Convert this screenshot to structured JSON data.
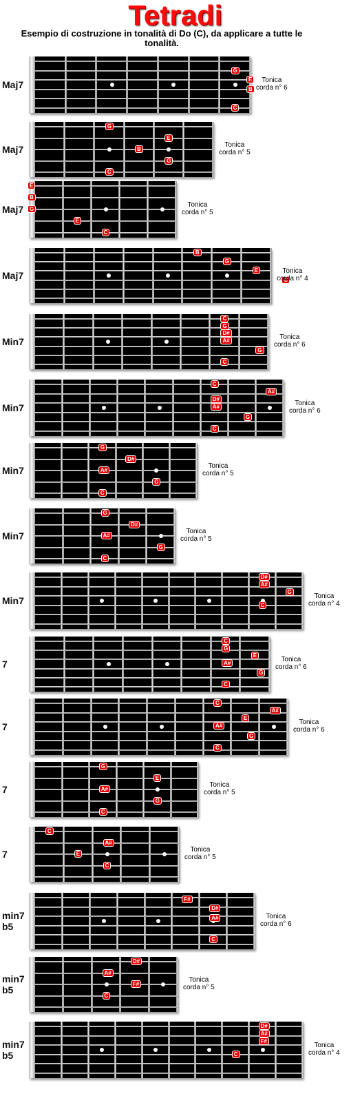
{
  "title": "Tetradi",
  "subtitle": "Esempio di costruzione in tonalità di Do (C), da applicare a tutte le tonalità.",
  "diagrams": [
    {
      "chord": "Maj7",
      "root": [
        "Tonica",
        "corda n° 6"
      ],
      "frets": 7,
      "strings": 6,
      "notes": [
        {
          "n": "G",
          "s": 2,
          "f": 7
        },
        {
          "n": "E",
          "s": 3,
          "f": 7.5
        },
        {
          "n": "B",
          "s": 4,
          "f": 7.5
        },
        {
          "n": "C",
          "s": 6,
          "f": 7
        }
      ]
    },
    {
      "chord": "Maj7",
      "root": [
        "Tonica",
        "corda n° 5"
      ],
      "frets": 6,
      "strings": 5,
      "notes": [
        {
          "n": "G",
          "s": 1,
          "f": 3
        },
        {
          "n": "E",
          "s": 2,
          "f": 5
        },
        {
          "n": "B",
          "s": 3,
          "f": 4
        },
        {
          "n": "G",
          "s": 4,
          "f": 5
        },
        {
          "n": "C",
          "s": 5,
          "f": 3
        }
      ]
    },
    {
      "chord": "Maj7",
      "root": [
        "Tonica",
        "corda n° 5"
      ],
      "frets": 5,
      "strings": 5,
      "notes": [
        {
          "n": "E",
          "s": 1,
          "f": 0
        },
        {
          "n": "B",
          "s": 2,
          "f": 0
        },
        {
          "n": "G",
          "s": 3,
          "f": 0
        },
        {
          "n": "E",
          "s": 4,
          "f": 2
        },
        {
          "n": "C",
          "s": 5,
          "f": 3
        }
      ]
    },
    {
      "chord": "Maj7",
      "root": [
        "Tonica",
        "corda n° 4"
      ],
      "frets": 8,
      "strings": 6,
      "notes": [
        {
          "n": "B",
          "s": 1,
          "f": 6
        },
        {
          "n": "G",
          "s": 2,
          "f": 7
        },
        {
          "n": "E",
          "s": 3,
          "f": 8
        },
        {
          "n": "C",
          "s": 4,
          "f": 9
        }
      ]
    },
    {
      "chord": "Min7",
      "root": [
        "Tonica",
        "corda n° 6"
      ],
      "frets": 8,
      "strings": 6,
      "notes": [
        {
          "n": "C",
          "s": 1,
          "f": 7
        },
        {
          "n": "G",
          "s": 1.8,
          "f": 7
        },
        {
          "n": "D#",
          "s": 2.6,
          "f": 7
        },
        {
          "n": "A#",
          "s": 3.4,
          "f": 7
        },
        {
          "n": "G",
          "s": 4.5,
          "f": 8.2
        },
        {
          "n": "C",
          "s": 5.8,
          "f": 7
        }
      ]
    },
    {
      "chord": "Min7",
      "root": [
        "Tonica",
        "corda n° 6"
      ],
      "frets": 9,
      "strings": 6,
      "notes": [
        {
          "n": "C",
          "s": 1,
          "f": 7
        },
        {
          "n": "A#",
          "s": 1.8,
          "f": 9
        },
        {
          "n": "D#",
          "s": 2.6,
          "f": 7
        },
        {
          "n": "A#",
          "s": 3.4,
          "f": 7
        },
        {
          "n": "G",
          "s": 4.5,
          "f": 8.2
        },
        {
          "n": "C",
          "s": 5.8,
          "f": 7
        }
      ]
    },
    {
      "chord": "Min7",
      "root": [
        "Tonica",
        "corda n° 5"
      ],
      "frets": 6,
      "strings": 5,
      "notes": [
        {
          "n": "G",
          "s": 1,
          "f": 3
        },
        {
          "n": "D#",
          "s": 2,
          "f": 4
        },
        {
          "n": "A#",
          "s": 3,
          "f": 3
        },
        {
          "n": "G",
          "s": 4,
          "f": 5
        },
        {
          "n": "C",
          "s": 5,
          "f": 3
        }
      ]
    },
    {
      "chord": "Min7",
      "root": [
        "Tonica",
        "corda n° 5"
      ],
      "frets": 5,
      "strings": 5,
      "notes": [
        {
          "n": "G",
          "s": 1,
          "f": 3
        },
        {
          "n": "D#",
          "s": 2,
          "f": 4
        },
        {
          "n": "A#",
          "s": 3,
          "f": 3
        },
        {
          "n": "G",
          "s": 4,
          "f": 5
        },
        {
          "n": "C",
          "s": 5,
          "f": 3
        }
      ]
    },
    {
      "chord": "Min7",
      "root": [
        "Tonica",
        "corda n° 4"
      ],
      "frets": 10,
      "strings": 6,
      "notes": [
        {
          "n": "D#",
          "s": 1,
          "f": 9
        },
        {
          "n": "A#",
          "s": 1.8,
          "f": 9
        },
        {
          "n": "G",
          "s": 2.6,
          "f": 10
        },
        {
          "n": "C",
          "s": 4,
          "f": 9
        }
      ]
    },
    {
      "chord": "7",
      "root": [
        "Tonica",
        "corda n° 6"
      ],
      "frets": 8,
      "strings": 6,
      "notes": [
        {
          "n": "C",
          "s": 1,
          "f": 7
        },
        {
          "n": "G",
          "s": 1.8,
          "f": 7
        },
        {
          "n": "E",
          "s": 2.6,
          "f": 8
        },
        {
          "n": "A#",
          "s": 3.4,
          "f": 7
        },
        {
          "n": "G",
          "s": 4.5,
          "f": 8.2
        },
        {
          "n": "C",
          "s": 5.8,
          "f": 7
        }
      ]
    },
    {
      "chord": "7",
      "root": [
        "Tonica",
        "corda n° 6"
      ],
      "frets": 9,
      "strings": 6,
      "notes": [
        {
          "n": "C",
          "s": 1,
          "f": 7
        },
        {
          "n": "A#",
          "s": 1.8,
          "f": 9
        },
        {
          "n": "E",
          "s": 2.6,
          "f": 8
        },
        {
          "n": "A#",
          "s": 3.4,
          "f": 7
        },
        {
          "n": "G",
          "s": 4.5,
          "f": 8.2
        },
        {
          "n": "C",
          "s": 5.8,
          "f": 7
        }
      ]
    },
    {
      "chord": "7",
      "root": [
        "Tonica",
        "corda n° 5"
      ],
      "frets": 6,
      "strings": 5,
      "notes": [
        {
          "n": "G",
          "s": 1,
          "f": 3
        },
        {
          "n": "E",
          "s": 2,
          "f": 5
        },
        {
          "n": "A#",
          "s": 3,
          "f": 3
        },
        {
          "n": "G",
          "s": 4,
          "f": 5
        },
        {
          "n": "C",
          "s": 5,
          "f": 3
        }
      ]
    },
    {
      "chord": "7",
      "root": [
        "Tonica",
        "corda n° 5"
      ],
      "frets": 5,
      "strings": 5,
      "notes": [
        {
          "n": "C",
          "s": 1,
          "f": 1
        },
        {
          "n": "A#",
          "s": 2,
          "f": 3
        },
        {
          "n": "E",
          "s": 3,
          "f": 2
        },
        {
          "n": "C",
          "s": 4,
          "f": 3
        }
      ]
    },
    {
      "chord": "min7 b5",
      "root": [
        "Tonica",
        "corda n° 6"
      ],
      "frets": 8,
      "strings": 6,
      "notes": [
        {
          "n": "F#",
          "s": 1.2,
          "f": 6
        },
        {
          "n": "D#",
          "s": 2.2,
          "f": 7
        },
        {
          "n": "A#",
          "s": 3.2,
          "f": 7
        },
        {
          "n": "C",
          "s": 5.5,
          "f": 7
        }
      ]
    },
    {
      "chord": "min7 b5",
      "root": [
        "Tonica",
        "corda n° 5"
      ],
      "frets": 5,
      "strings": 5,
      "notes": [
        {
          "n": "D#",
          "s": 1,
          "f": 4
        },
        {
          "n": "A#",
          "s": 2,
          "f": 3
        },
        {
          "n": "F#",
          "s": 3,
          "f": 4
        },
        {
          "n": "C",
          "s": 4,
          "f": 3
        }
      ]
    },
    {
      "chord": "min7 b5",
      "root": [
        "Tonica",
        "corda n° 4"
      ],
      "frets": 10,
      "strings": 6,
      "notes": [
        {
          "n": "D#",
          "s": 1,
          "f": 9
        },
        {
          "n": "A#",
          "s": 1.8,
          "f": 9
        },
        {
          "n": "F#",
          "s": 2.6,
          "f": 9
        },
        {
          "n": "C",
          "s": 4,
          "f": 8
        }
      ]
    }
  ]
}
